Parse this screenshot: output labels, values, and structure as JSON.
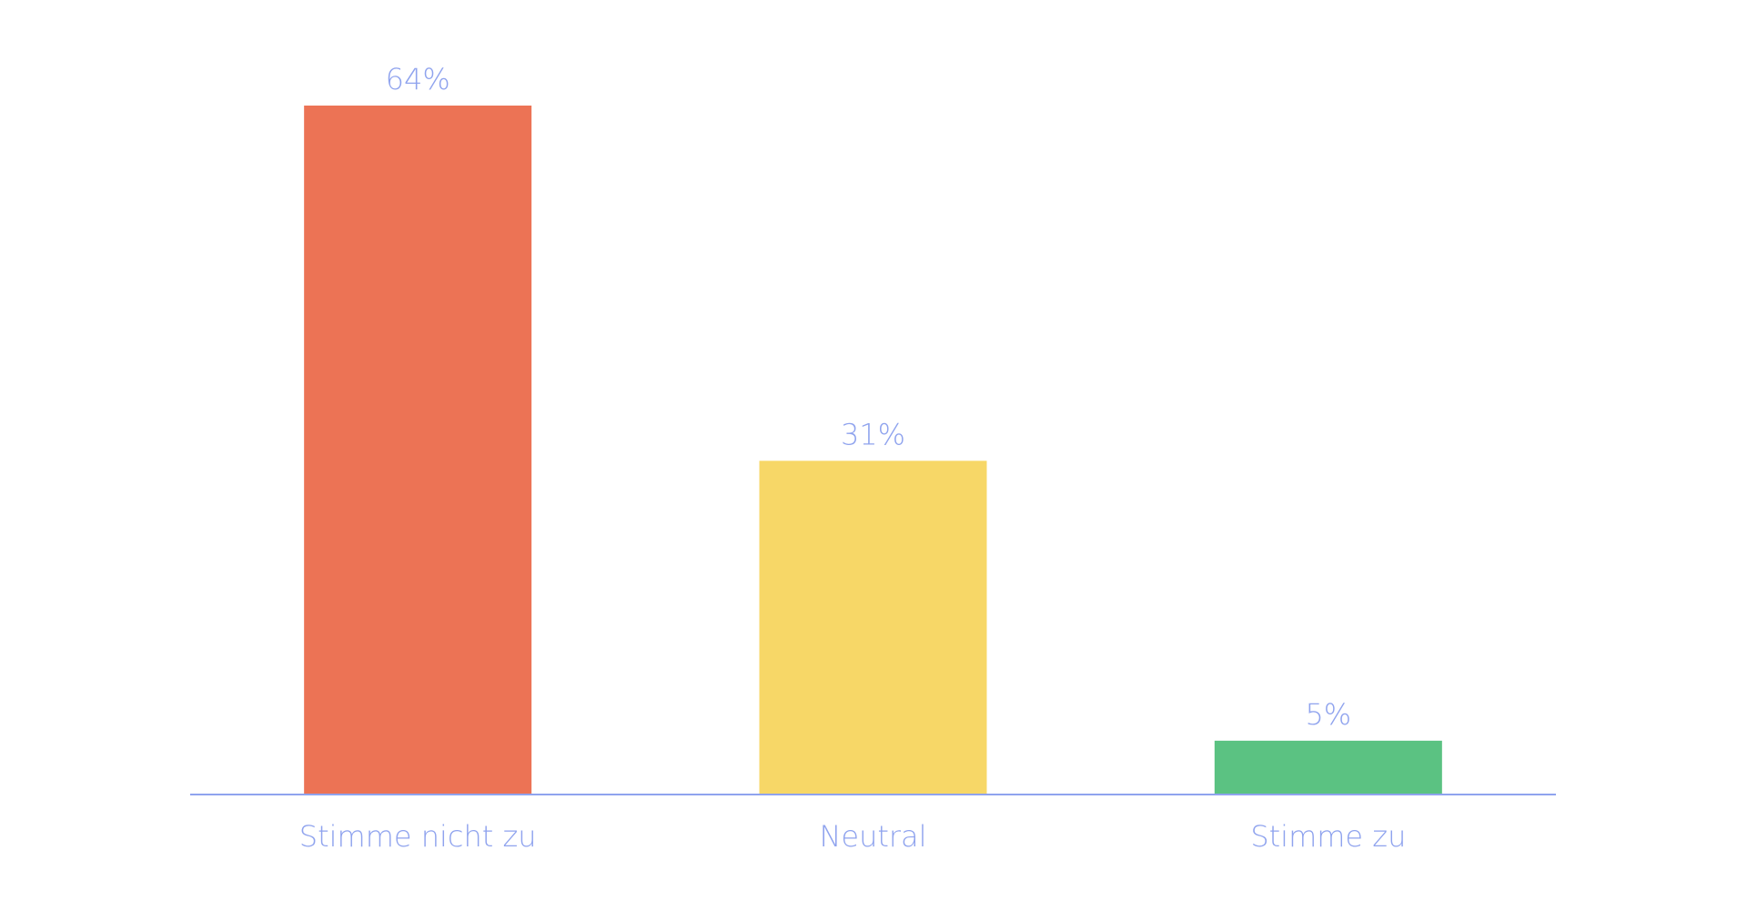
{
  "chart_data": {
    "type": "bar",
    "categories": [
      "Stimme nicht zu",
      "Neutral",
      "Stimme zu"
    ],
    "values": [
      64,
      31,
      5
    ],
    "value_labels": [
      "64%",
      "31%",
      "5%"
    ],
    "unit": "%",
    "title": "",
    "xlabel": "",
    "ylabel": "",
    "ylim": [
      0,
      64
    ],
    "grid": false,
    "legend": "none",
    "bar_colors": [
      "#EC7355",
      "#F7D767",
      "#5BC282"
    ],
    "text_color": "#8FA3EE",
    "axis_color": "#8FA3EE"
  }
}
